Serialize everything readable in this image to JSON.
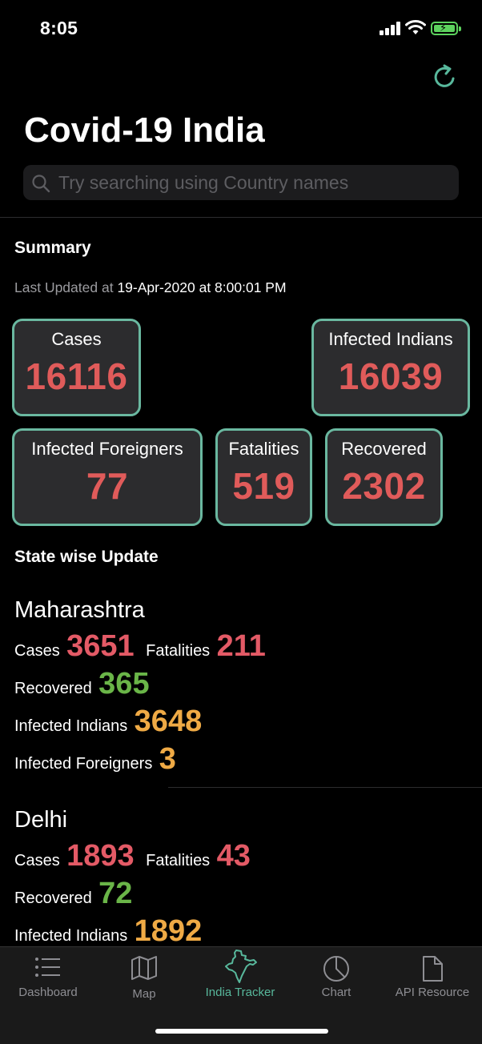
{
  "status_bar": {
    "time": "8:05"
  },
  "header": {
    "title": "Covid-19 India",
    "search_placeholder": "Try searching using Country names"
  },
  "summary": {
    "heading": "Summary",
    "last_updated_label": "Last Updated at",
    "last_updated_value": "19-Apr-2020 at 8:00:01 PM",
    "cards": {
      "cases": {
        "label": "Cases",
        "value": "16116"
      },
      "infected_indians": {
        "label": "Infected Indians",
        "value": "16039"
      },
      "infected_foreigners": {
        "label": "Infected Foreigners",
        "value": "77"
      },
      "fatalities": {
        "label": "Fatalities",
        "value": "519"
      },
      "recovered": {
        "label": "Recovered",
        "value": "2302"
      }
    }
  },
  "statewise": {
    "heading": "State wise Update",
    "states": [
      {
        "name": "Maharashtra",
        "cases_label": "Cases",
        "cases": "3651",
        "fatalities_label": "Fatalities",
        "fatalities": "211",
        "recovered_label": "Recovered",
        "recovered": "365",
        "infected_indians_label": "Infected Indians",
        "infected_indians": "3648",
        "infected_foreigners_label": "Infected Foreigners",
        "infected_foreigners": "3"
      },
      {
        "name": "Delhi",
        "cases_label": "Cases",
        "cases": "1893",
        "fatalities_label": "Fatalities",
        "fatalities": "43",
        "recovered_label": "Recovered",
        "recovered": "72",
        "infected_indians_label": "Infected Indians",
        "infected_indians": "1892"
      }
    ]
  },
  "colors": {
    "card_border": "#6ab8a0",
    "card_value": "#e05b5a",
    "cases_red": "#e35a66",
    "recovered_green": "#6ab548",
    "infected_orange": "#efaa45",
    "tab_active": "#58b89c"
  },
  "tabs": [
    {
      "label": "Dashboard",
      "icon": "list-icon",
      "active": false
    },
    {
      "label": "Map",
      "icon": "map-icon",
      "active": false
    },
    {
      "label": "India Tracker",
      "icon": "india-map-icon",
      "active": true
    },
    {
      "label": "Chart",
      "icon": "pie-chart-icon",
      "active": false
    },
    {
      "label": "API Resource",
      "icon": "document-icon",
      "active": false
    }
  ]
}
